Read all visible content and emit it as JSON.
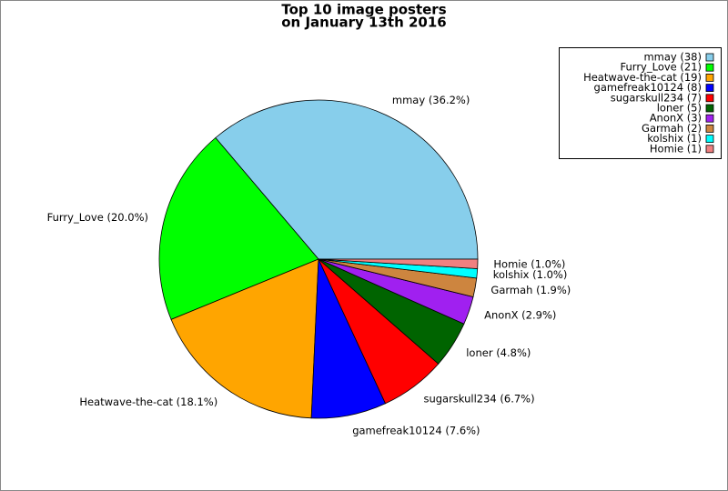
{
  "chart_data": {
    "type": "pie",
    "title": [
      "Top 10 image posters",
      "on January 13th 2016"
    ],
    "values": [
      38,
      21,
      19,
      8,
      7,
      5,
      3,
      2,
      1,
      1
    ],
    "value_labels": [
      "mmay (38)",
      "Furry_Love (21)",
      "Heatwave-the-cat (19)",
      "gamefreak10124 (8)",
      "sugarskull234 (7)",
      "loner (5)",
      "AnonX (3)",
      "Garmah (2)",
      "kolshix (1)",
      "Homie (1)"
    ],
    "slice_labels": [
      "mmay (36.2%)",
      "Furry_Love (20.0%)",
      "Heatwave-the-cat (18.1%)",
      "gamefreak10124 (7.6%)",
      "sugarskull234 (6.7%)",
      "loner (4.8%)",
      "AnonX (2.9%)",
      "Garmah (1.9%)",
      "kolshix (1.0%)",
      "Homie (1.0%)"
    ],
    "colors": [
      "#87ceeb",
      "#00ff00",
      "#ffa500",
      "#0000ff",
      "#ff0000",
      "#006400",
      "#a020f0",
      "#cd853f",
      "#00ffff",
      "#f08080"
    ],
    "legend": "upper right"
  }
}
